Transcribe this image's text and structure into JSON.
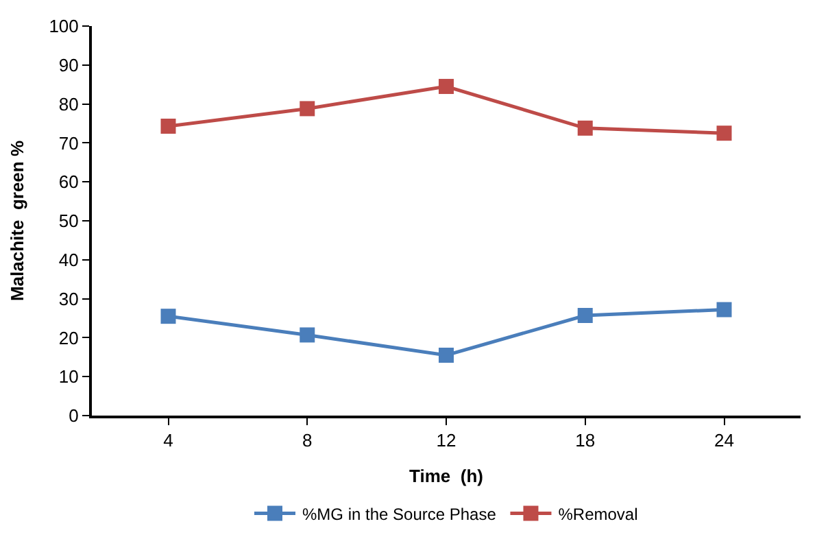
{
  "chart_data": {
    "type": "line",
    "xlabel": "Time  (h)",
    "ylabel": "Malachite  green %",
    "categories": [
      "4",
      "8",
      "12",
      "18",
      "24"
    ],
    "series": [
      {
        "name": "%MG in the Source Phase",
        "color": "#4a7ebb",
        "values": [
          25.5,
          20.7,
          15.5,
          25.7,
          27.2
        ]
      },
      {
        "name": "%Removal",
        "color": "#be4b48",
        "values": [
          74.3,
          78.8,
          84.5,
          73.8,
          72.5
        ]
      }
    ],
    "ylim": [
      0,
      100
    ],
    "yticks": [
      0,
      10,
      20,
      30,
      40,
      50,
      60,
      70,
      80,
      90,
      100
    ],
    "legend": "bottom",
    "marker": "square",
    "line_style": "solid"
  }
}
